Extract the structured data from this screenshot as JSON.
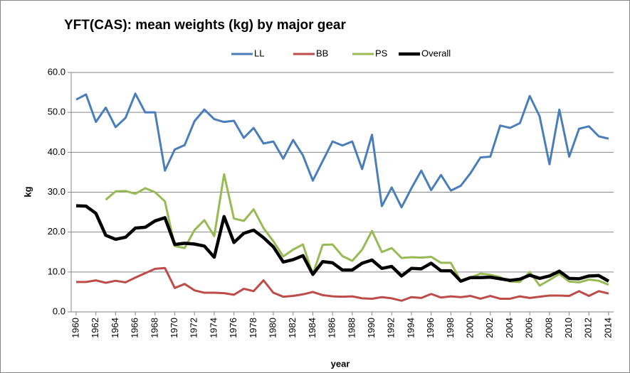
{
  "chart_data": {
    "type": "line",
    "title": "YFT(CAS): mean weights (kg) by major gear",
    "x_label": "year",
    "y_label": "kg",
    "x": [
      1960,
      1961,
      1962,
      1963,
      1964,
      1965,
      1966,
      1967,
      1968,
      1969,
      1970,
      1971,
      1972,
      1973,
      1974,
      1975,
      1976,
      1977,
      1978,
      1979,
      1980,
      1981,
      1982,
      1983,
      1984,
      1985,
      1986,
      1987,
      1988,
      1989,
      1990,
      1991,
      1992,
      1993,
      1994,
      1995,
      1996,
      1997,
      1998,
      1999,
      2000,
      2001,
      2002,
      2003,
      2004,
      2005,
      2006,
      2007,
      2008,
      2009,
      2010,
      2011,
      2012,
      2013,
      2014
    ],
    "xlim": [
      1960,
      2014
    ],
    "xticks": [
      1960,
      1962,
      1964,
      1966,
      1968,
      1970,
      1972,
      1974,
      1976,
      1978,
      1980,
      1982,
      1984,
      1986,
      1988,
      1990,
      1992,
      1994,
      1996,
      1998,
      2000,
      2002,
      2004,
      2006,
      2008,
      2010,
      2012,
      2014
    ],
    "ylim": [
      0,
      60
    ],
    "yticks": [
      {
        "value": 0,
        "label": "0.0"
      },
      {
        "value": 10,
        "label": "10.0"
      },
      {
        "value": 20,
        "label": "20.0"
      },
      {
        "value": 30,
        "label": "30.0"
      },
      {
        "value": 40,
        "label": "40.0"
      },
      {
        "value": 50,
        "label": "50.0"
      },
      {
        "value": 60,
        "label": "60.0"
      }
    ],
    "grid": true,
    "legend": "top",
    "series": [
      {
        "name": "LL",
        "color": "#4a7ebb",
        "width": 3,
        "values": [
          53.2,
          54.5,
          47.6,
          51.2,
          46.3,
          48.6,
          54.7,
          50.0,
          50.0,
          35.4,
          40.7,
          41.8,
          47.8,
          50.7,
          48.3,
          47.6,
          47.9,
          43.6,
          46.1,
          42.2,
          42.7,
          38.4,
          43.1,
          39.2,
          32.9,
          37.8,
          42.7,
          41.7,
          42.7,
          35.8,
          44.4,
          26.5,
          31.2,
          26.2,
          31.0,
          35.4,
          30.5,
          34.3,
          30.4,
          31.6,
          34.8,
          38.7,
          38.9,
          46.7,
          46.1,
          47.3,
          54.1,
          49.0,
          37.0,
          50.7,
          38.9,
          45.9,
          46.5,
          44.0,
          43.4
        ]
      },
      {
        "name": "BB",
        "color": "#be4b48",
        "width": 3,
        "values": [
          7.5,
          7.5,
          7.9,
          7.3,
          7.8,
          7.4,
          8.6,
          9.7,
          10.8,
          11.0,
          6.0,
          7.0,
          5.4,
          4.8,
          4.8,
          4.7,
          4.3,
          5.8,
          5.2,
          7.9,
          4.8,
          3.8,
          4.0,
          4.4,
          5.0,
          4.2,
          3.9,
          3.8,
          3.9,
          3.4,
          3.3,
          3.7,
          3.4,
          2.8,
          3.7,
          3.5,
          4.5,
          3.6,
          3.9,
          3.7,
          4.0,
          3.3,
          4.0,
          3.3,
          3.3,
          3.9,
          3.5,
          3.8,
          4.1,
          4.1,
          4.0,
          5.2,
          4.0,
          5.2,
          4.6
        ]
      },
      {
        "name": "PS",
        "color": "#98b954",
        "width": 3,
        "values": [
          null,
          null,
          null,
          28.1,
          30.2,
          30.3,
          29.6,
          31.0,
          30.0,
          27.7,
          16.5,
          16.0,
          20.5,
          23.0,
          19.0,
          34.5,
          23.4,
          22.8,
          25.7,
          21.0,
          17.7,
          13.9,
          15.6,
          16.9,
          9.4,
          16.8,
          16.9,
          14.0,
          12.8,
          15.6,
          20.3,
          15.0,
          16.0,
          13.5,
          13.7,
          13.6,
          13.8,
          12.3,
          12.3,
          7.7,
          8.6,
          9.6,
          9.3,
          8.7,
          7.6,
          7.5,
          10.0,
          6.6,
          8.0,
          9.5,
          7.6,
          7.4,
          8.1,
          7.8,
          6.8
        ]
      },
      {
        "name": "Overall",
        "color": "#000000",
        "width": 4.5,
        "values": [
          26.6,
          26.5,
          24.7,
          19.2,
          18.2,
          18.7,
          21.0,
          21.2,
          22.8,
          23.6,
          16.9,
          17.2,
          17.0,
          16.5,
          13.7,
          23.9,
          17.4,
          19.7,
          20.5,
          18.6,
          16.3,
          12.5,
          13.1,
          14.1,
          9.4,
          12.6,
          12.3,
          10.5,
          10.5,
          12.2,
          13.0,
          10.9,
          11.4,
          9.0,
          10.9,
          10.8,
          12.2,
          10.3,
          10.3,
          7.7,
          8.6,
          8.6,
          8.7,
          8.3,
          7.9,
          8.2,
          9.2,
          8.4,
          9.0,
          10.2,
          8.4,
          8.3,
          9.0,
          9.1,
          7.7
        ]
      }
    ]
  }
}
